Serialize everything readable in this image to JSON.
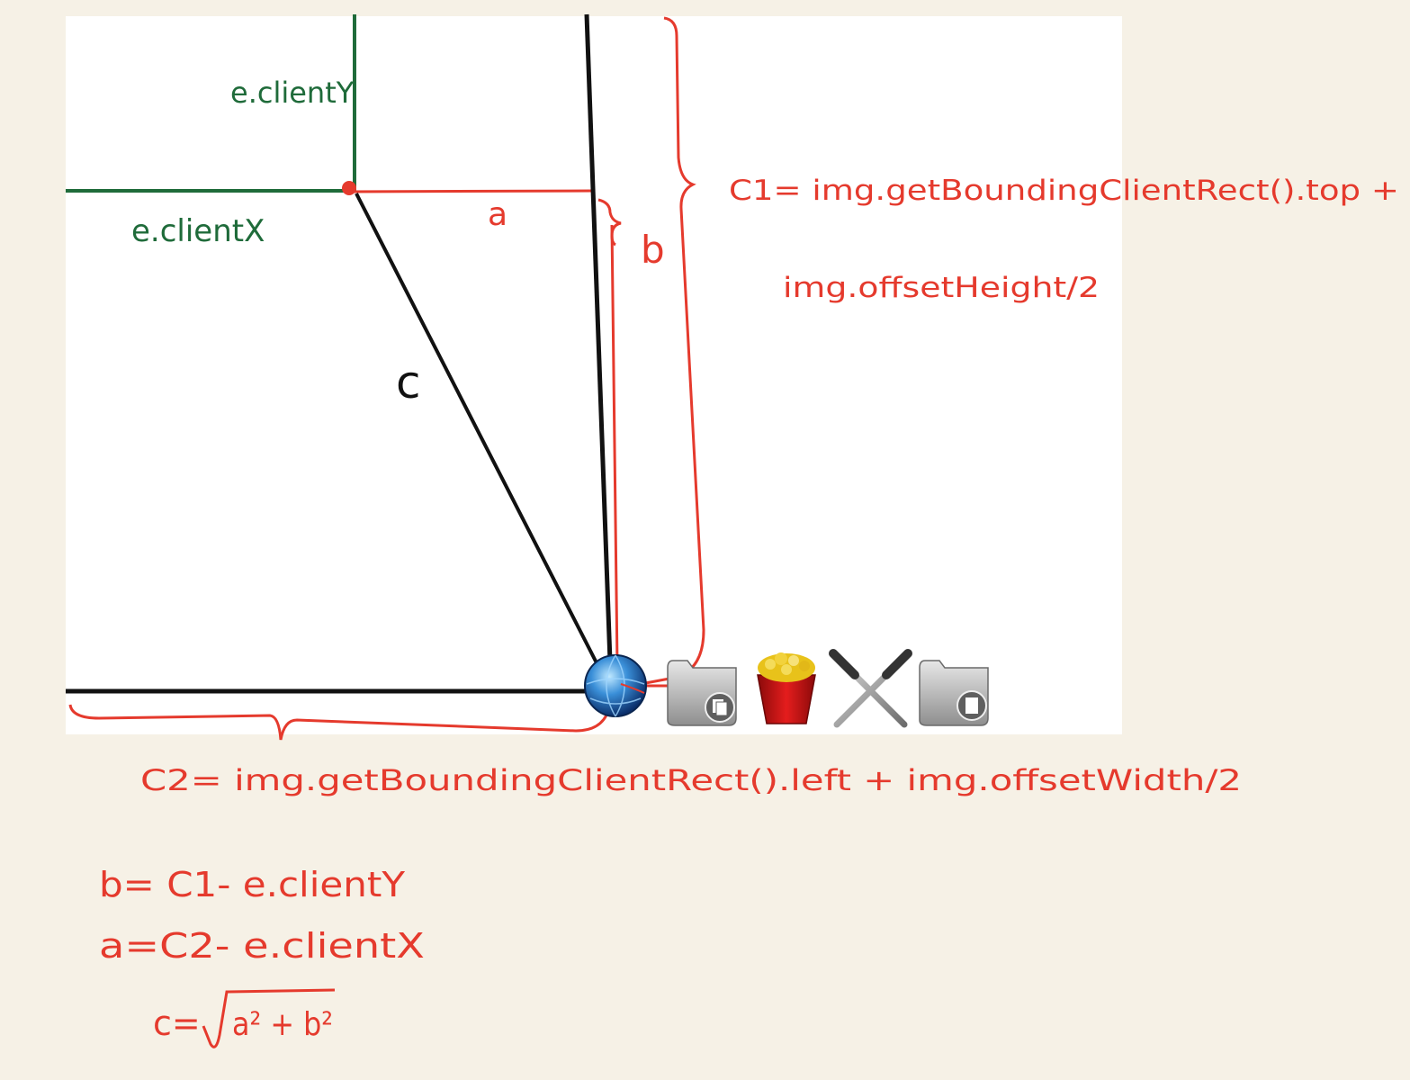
{
  "labels": {
    "e_client_y": "e.clientY",
    "e_client_x": "e.clientX",
    "a": "a",
    "b": "b",
    "c": "c",
    "c1_line1": "C1= img.getBoundingClientRect().top +",
    "c1_line2": "img.offsetHeight/2",
    "c2": "C2= img.getBoundingClientRect().left + img.offsetWidth/2",
    "formula_b": "b= C1- e.clientY",
    "formula_a": "a=C2- e.clientX",
    "formula_c_prefix": "c=",
    "formula_c_body": "a² + b²"
  },
  "colors": {
    "paper": "#f6f1e6",
    "panel": "#ffffff",
    "green": "#1f6b3a",
    "red": "#e53a2d",
    "black": "#111111"
  },
  "dock_icons": [
    "globe-icon",
    "documents-folder-icon",
    "popcorn-bucket-icon",
    "tools-crossed-icon",
    "document-folder-icon"
  ]
}
